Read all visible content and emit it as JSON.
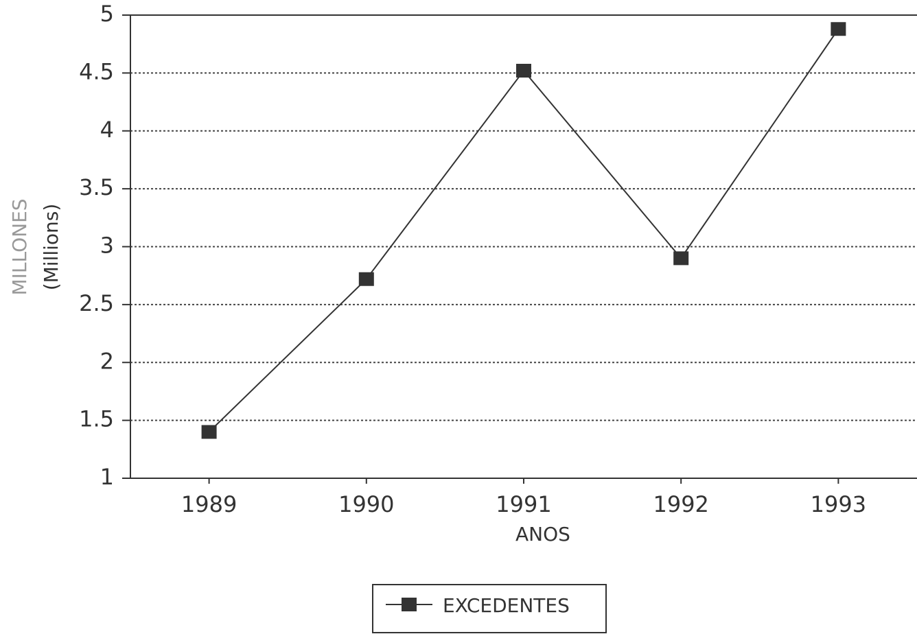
{
  "chart_data": {
    "type": "line",
    "ylabel": "MILLONES",
    "ylabel_note": "(Millions)",
    "xlabel": "ANOS",
    "categories": [
      "1989",
      "1990",
      "1991",
      "1992",
      "1993"
    ],
    "series": [
      {
        "name": "EXCEDENTES",
        "color": "#333333",
        "values": [
          1.4,
          2.72,
          4.52,
          2.9,
          4.88
        ]
      }
    ],
    "ylim": [
      1,
      5
    ],
    "yticks": [
      1,
      1.5,
      2,
      2.5,
      3,
      3.5,
      4,
      4.5,
      5
    ],
    "grid": true,
    "legend": "bottom"
  }
}
